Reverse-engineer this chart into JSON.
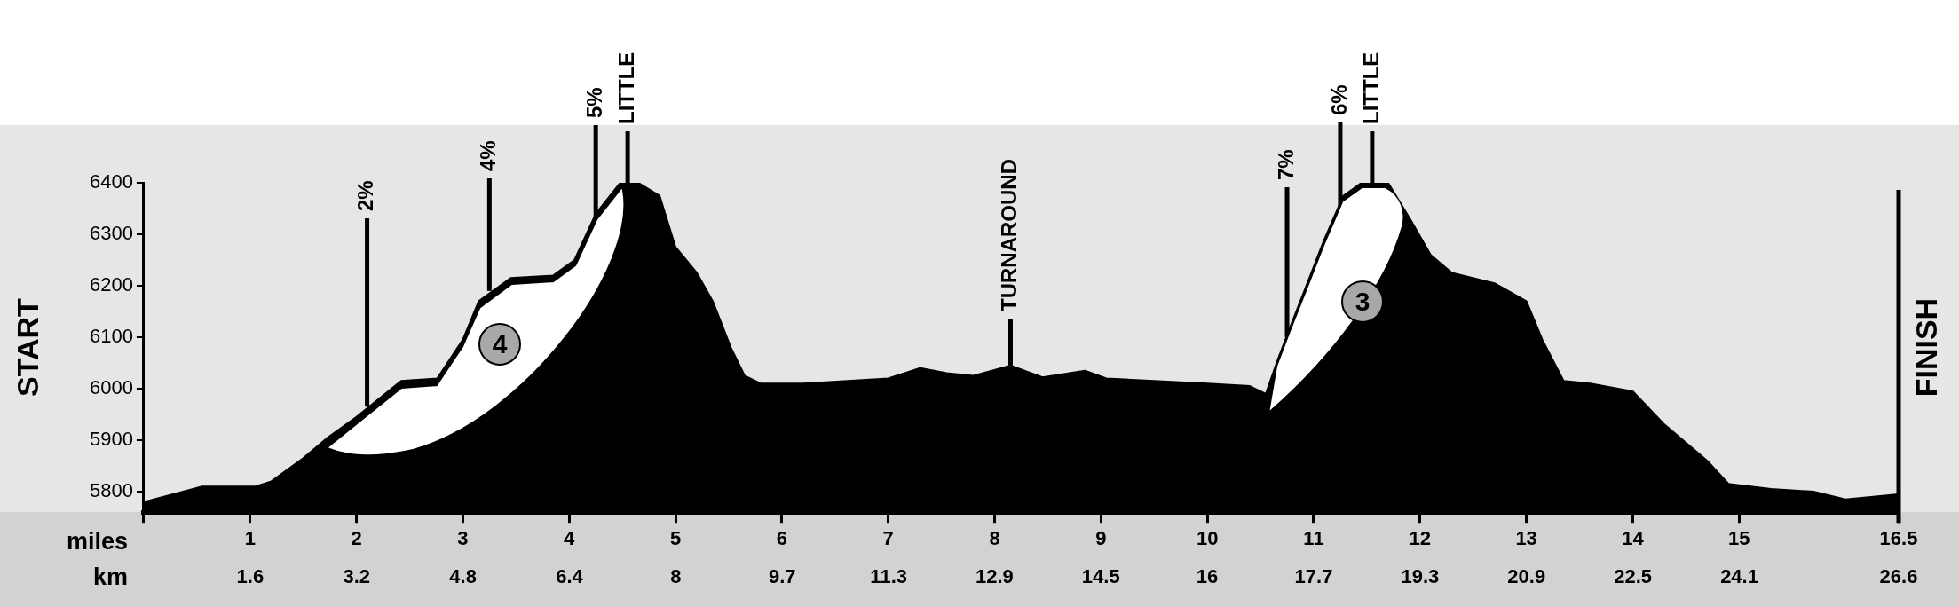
{
  "chart_data": {
    "type": "area",
    "xlabel": "miles",
    "x2label": "km",
    "x": [
      0,
      0.55,
      1.05,
      1.2,
      1.5,
      1.73,
      2.0,
      2.42,
      2.76,
      3.0,
      3.15,
      3.45,
      3.85,
      4.05,
      4.25,
      4.48,
      4.65,
      4.85,
      5.0,
      5.2,
      5.35,
      5.52,
      5.65,
      5.8,
      6.2,
      7.0,
      7.3,
      7.55,
      7.8,
      8.15,
      8.45,
      8.85,
      9.05,
      9.5,
      10.0,
      10.4,
      10.55,
      10.66,
      10.78,
      10.95,
      11.1,
      11.28,
      11.45,
      11.7,
      11.92,
      12.1,
      12.3,
      12.7,
      13.0,
      13.15,
      13.35,
      13.6,
      14.0,
      14.3,
      14.7,
      14.9,
      15.3,
      15.7,
      16.0,
      16.5
    ],
    "series": [
      {
        "color": "#000000",
        "values": [
          5780,
          5810,
          5810,
          5820,
          5865,
          5905,
          5945,
          6015,
          6020,
          6095,
          6170,
          6215,
          6220,
          6250,
          6340,
          6400,
          6400,
          6375,
          6275,
          6225,
          6170,
          6080,
          6025,
          6010,
          6010,
          6020,
          6040,
          6030,
          6025,
          6045,
          6022,
          6035,
          6020,
          6015,
          6010,
          6005,
          5990,
          6055,
          6120,
          6210,
          6290,
          6375,
          6400,
          6400,
          6325,
          6260,
          6225,
          6205,
          6170,
          6095,
          6015,
          6010,
          5995,
          5930,
          5860,
          5815,
          5805,
          5800,
          5785,
          5795
        ]
      }
    ],
    "xlim": [
      0,
      16.5
    ],
    "xticks": [
      {
        "value": 0,
        "label": null
      },
      1,
      2,
      3,
      4,
      5,
      6,
      7,
      8,
      9,
      10,
      11,
      12,
      13,
      14,
      15,
      16.5
    ],
    "x2lim": [
      0,
      26.55
    ],
    "x2ticks": [
      {
        "value": 1.61,
        "label": "1.6"
      },
      {
        "value": 3.22,
        "label": "3.2"
      },
      {
        "value": 4.83,
        "label": "4.8"
      },
      {
        "value": 6.44,
        "label": "6.4"
      },
      {
        "value": 8.05,
        "label": "8"
      },
      {
        "value": 9.66,
        "label": "9.7"
      },
      {
        "value": 11.27,
        "label": "11.3"
      },
      {
        "value": 12.87,
        "label": "12.9"
      },
      {
        "value": 14.48,
        "label": "14.5"
      },
      {
        "value": 16.09,
        "label": "16"
      },
      {
        "value": 17.7,
        "label": "17.7"
      },
      {
        "value": 19.31,
        "label": "19.3"
      },
      {
        "value": 20.92,
        "label": "20.9"
      },
      {
        "value": 22.53,
        "label": "22.5"
      },
      {
        "value": 24.14,
        "label": "24.1"
      },
      {
        "value": 26.55,
        "label": "26.6"
      }
    ],
    "ylim": [
      5760,
      6400
    ],
    "yticks": [
      5800,
      5900,
      6000,
      6100,
      6200,
      6300,
      6400
    ],
    "grid": false,
    "legend": false,
    "marker": "none",
    "ref_lines": [
      {
        "axis": "x",
        "value": 16.5,
        "label": "FINISH"
      }
    ],
    "annotations": [
      {
        "text": "2%",
        "x": 2.1,
        "y": 5965
      },
      {
        "text": "4%",
        "x": 3.25,
        "y": 6190
      },
      {
        "text": "5%",
        "x": 4.25,
        "y": 6330
      },
      {
        "text": "LITTLE",
        "x": 4.55,
        "y": 6400
      },
      {
        "text": "TURNAROUND",
        "x": 8.15,
        "y": 6045
      },
      {
        "text": "7%",
        "x": 10.75,
        "y": 6100
      },
      {
        "text": "6%",
        "x": 11.25,
        "y": 6340
      },
      {
        "text": "LITTLE",
        "x": 11.55,
        "y": 6400
      },
      "4",
      "3",
      "START"
    ]
  }
}
